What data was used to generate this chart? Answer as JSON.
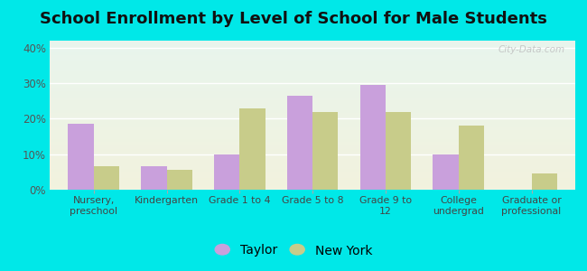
{
  "title": "School Enrollment by Level of School for Male Students",
  "categories": [
    "Nursery,\npreschool",
    "Kindergarten",
    "Grade 1 to 4",
    "Grade 5 to 8",
    "Grade 9 to\n12",
    "College\nundergrad",
    "Graduate or\nprofessional"
  ],
  "taylor_values": [
    18.5,
    6.5,
    10.0,
    26.5,
    29.5,
    10.0,
    0.0
  ],
  "newyork_values": [
    6.5,
    5.5,
    23.0,
    22.0,
    22.0,
    18.0,
    4.5
  ],
  "taylor_color": "#c9a0dc",
  "newyork_color": "#c8cc8a",
  "background_outer": "#00e8e8",
  "ylim": [
    0,
    42
  ],
  "yticks": [
    0,
    10,
    20,
    30,
    40
  ],
  "ytick_labels": [
    "0%",
    "10%",
    "20%",
    "30%",
    "40%"
  ],
  "legend_taylor": "Taylor",
  "legend_newyork": "New York",
  "title_fontsize": 13,
  "bar_width": 0.35
}
